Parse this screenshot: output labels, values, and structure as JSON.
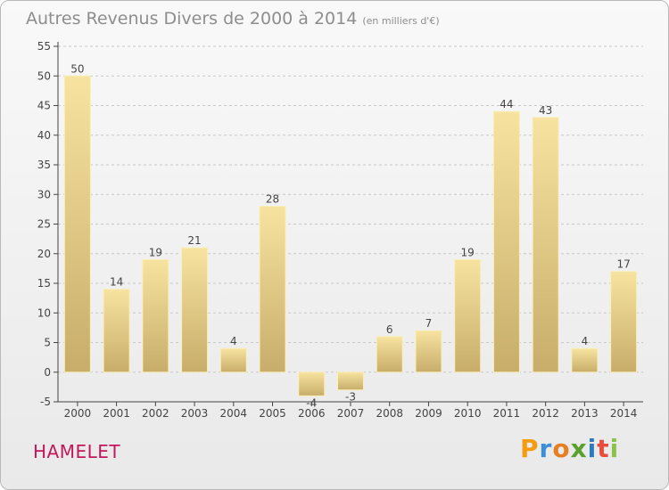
{
  "title": {
    "main": "Autres Revenus Divers de 2000 à 2014",
    "sub": "(en milliers d'€)"
  },
  "commune": "HAMELET",
  "logo": {
    "letters": [
      "P",
      "r",
      "o",
      "x",
      "i",
      "t",
      "i"
    ],
    "colors": [
      "#f39c12",
      "#3b8ed8",
      "#e67e22",
      "#5aa02c",
      "#2b7bbf",
      "#e74c3c",
      "#8bc34a"
    ]
  },
  "colors": {
    "bar_top": "#f7e3a0",
    "bar_bottom": "#c8ad6a",
    "axis": "#444444",
    "grid": "#c8c8c8",
    "text": "#444444"
  },
  "chart_data": {
    "type": "bar",
    "categories": [
      "2000",
      "2001",
      "2002",
      "2003",
      "2004",
      "2005",
      "2006",
      "2007",
      "2008",
      "2009",
      "2010",
      "2011",
      "2012",
      "2013",
      "2014"
    ],
    "values": [
      50,
      14,
      19,
      21,
      4,
      28,
      -4,
      -3,
      6,
      7,
      19,
      44,
      43,
      4,
      17
    ],
    "data_labels": [
      "50",
      "14",
      "19",
      "21",
      "4",
      "28",
      "-4",
      "-3",
      "6",
      "7",
      "19",
      "44",
      "43",
      "4",
      "17"
    ],
    "yticks": [
      -5,
      0,
      5,
      10,
      15,
      20,
      25,
      30,
      35,
      40,
      45,
      50,
      55
    ],
    "ylim": [
      -5,
      55
    ],
    "grid": "horizontal dashed",
    "title": "Autres Revenus Divers de 2000 à 2014",
    "xlabel": "",
    "ylabel": ""
  }
}
